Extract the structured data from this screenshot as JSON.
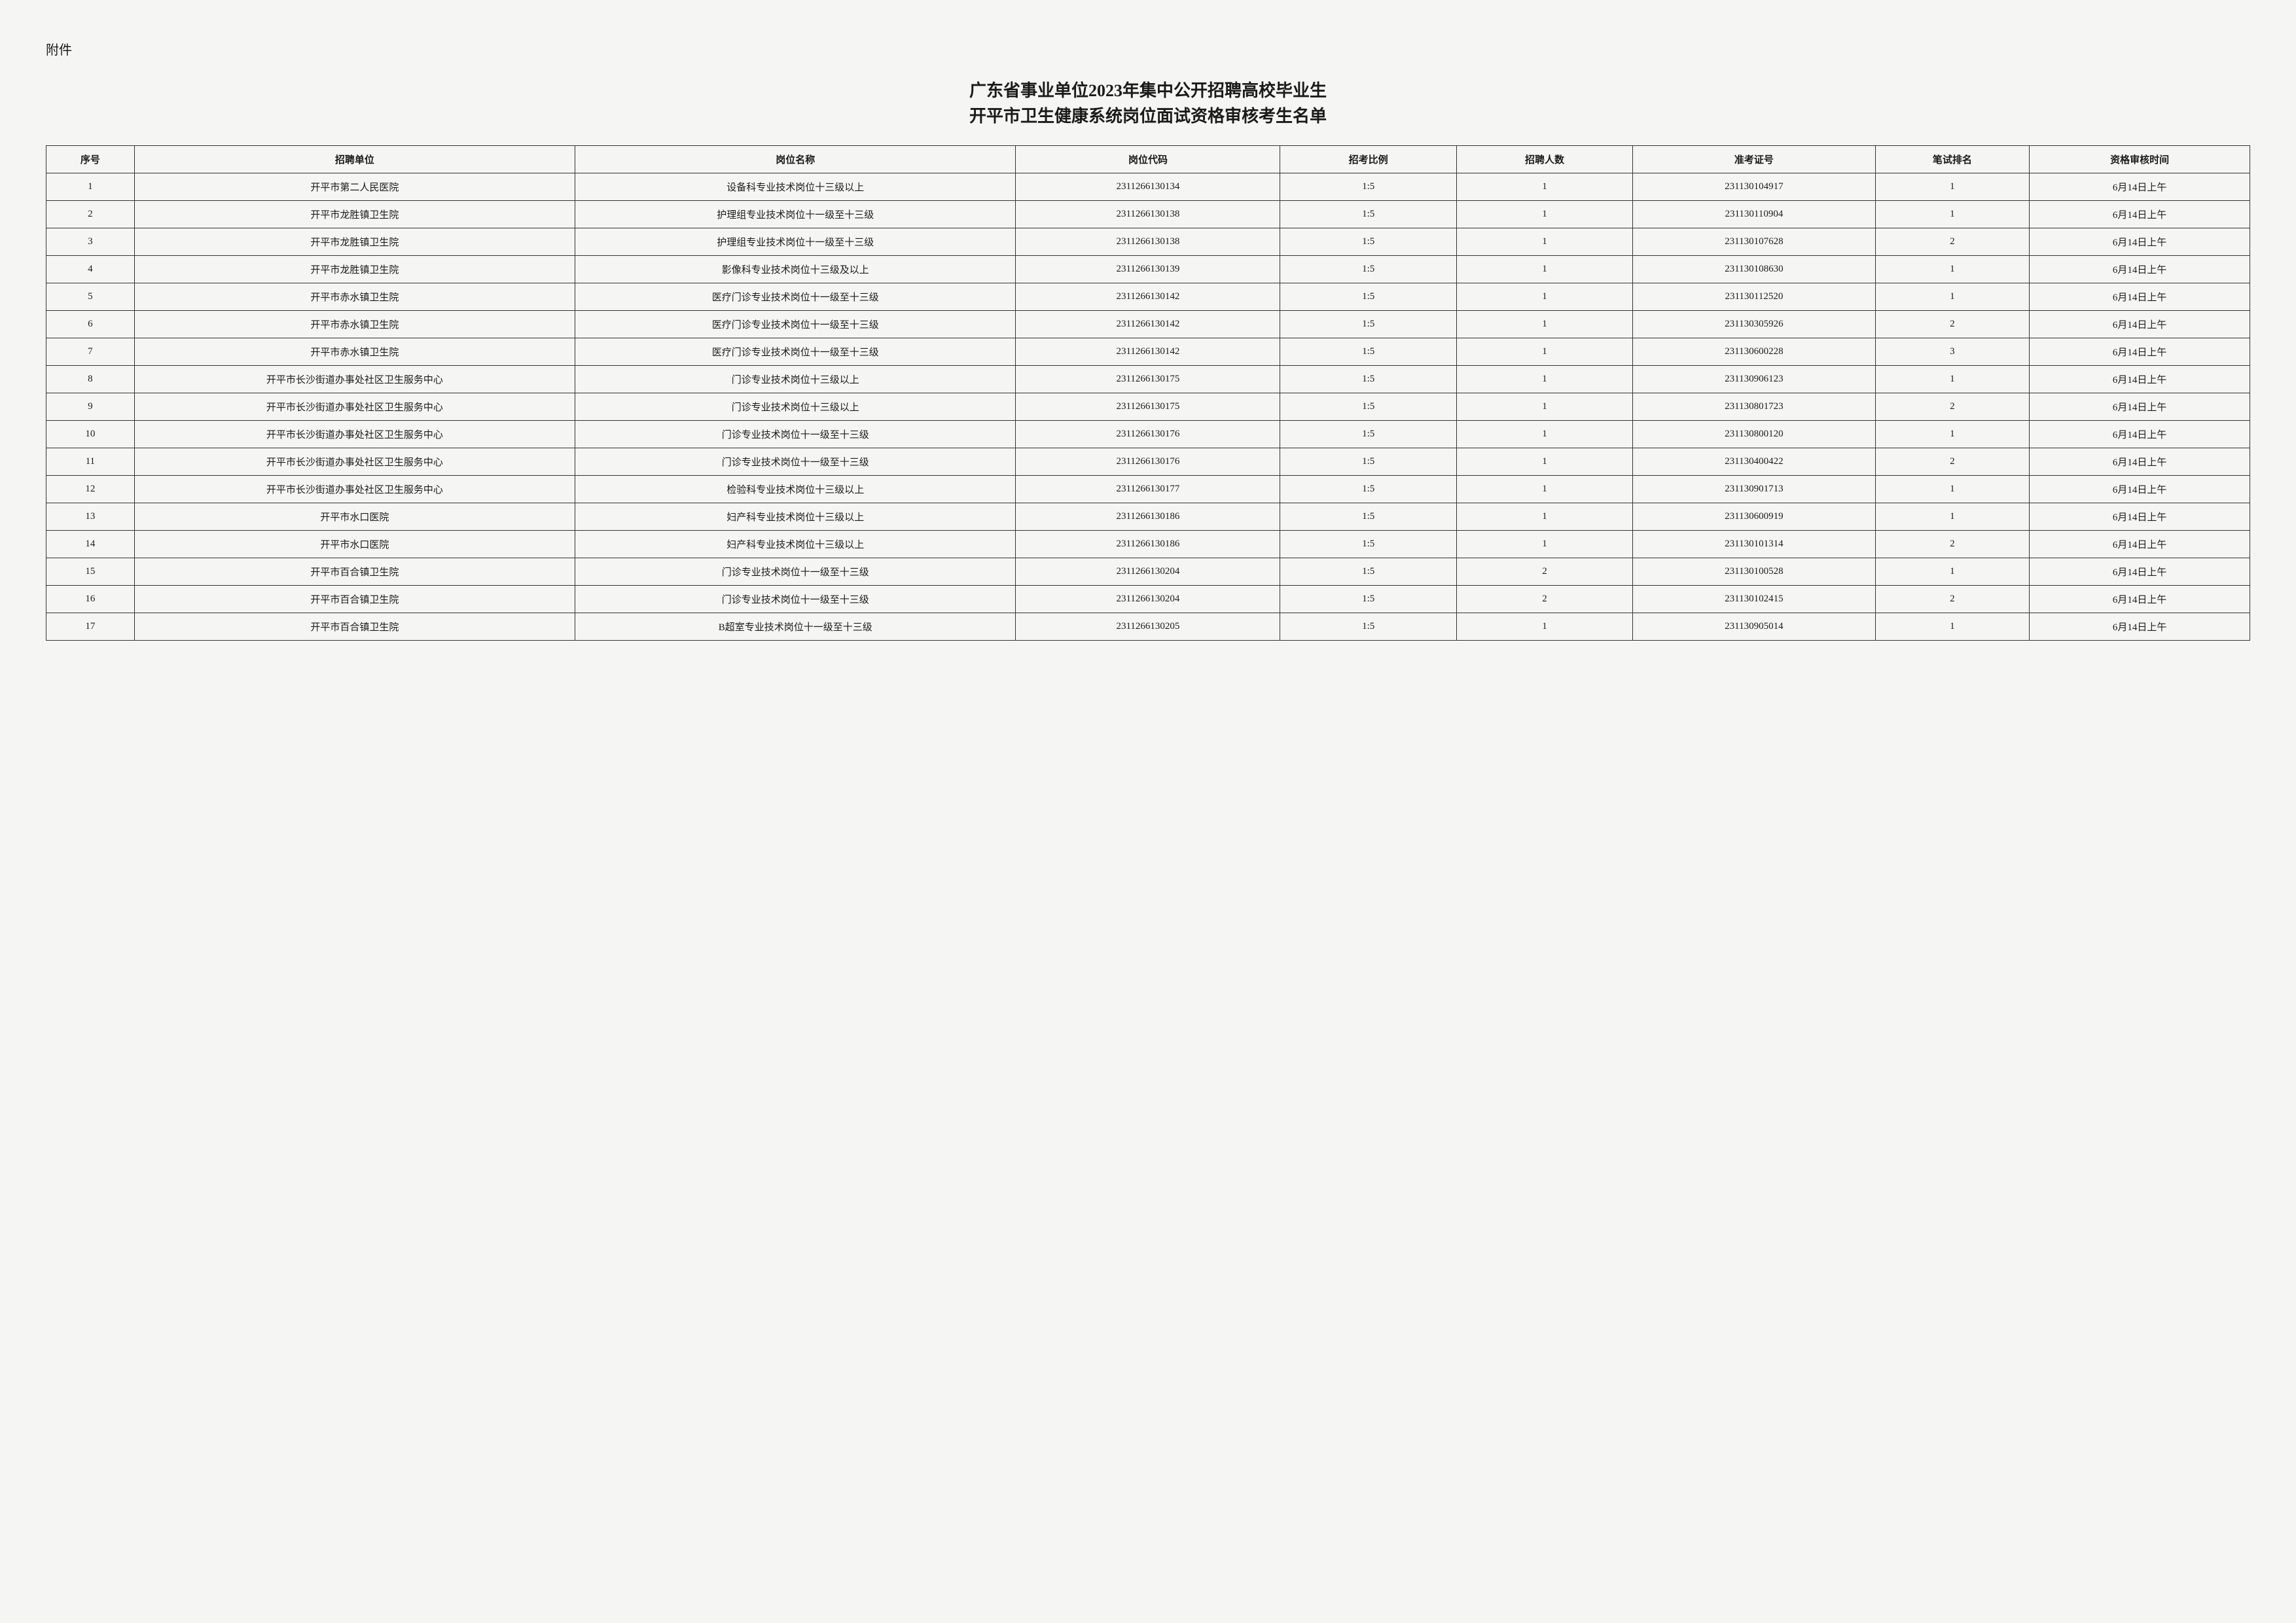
{
  "attachment_label": "附件",
  "title_line1": "广东省事业单位2023年集中公开招聘高校毕业生",
  "title_line2": "开平市卫生健康系统岗位面试资格审核考生名单",
  "headers": {
    "seq": "序号",
    "unit": "招聘单位",
    "post": "岗位名称",
    "code": "岗位代码",
    "ratio": "招考比例",
    "count": "招聘人数",
    "ticket": "准考证号",
    "rank": "笔试排名",
    "time": "资格审核时间"
  },
  "rows": [
    {
      "seq": "1",
      "unit": "开平市第二人民医院",
      "post": "设备科专业技术岗位十三级以上",
      "code": "2311266130134",
      "ratio": "1:5",
      "count": "1",
      "ticket": "231130104917",
      "rank": "1",
      "time": "6月14日上午"
    },
    {
      "seq": "2",
      "unit": "开平市龙胜镇卫生院",
      "post": "护理组专业技术岗位十一级至十三级",
      "code": "2311266130138",
      "ratio": "1:5",
      "count": "1",
      "ticket": "231130110904",
      "rank": "1",
      "time": "6月14日上午"
    },
    {
      "seq": "3",
      "unit": "开平市龙胜镇卫生院",
      "post": "护理组专业技术岗位十一级至十三级",
      "code": "2311266130138",
      "ratio": "1:5",
      "count": "1",
      "ticket": "231130107628",
      "rank": "2",
      "time": "6月14日上午"
    },
    {
      "seq": "4",
      "unit": "开平市龙胜镇卫生院",
      "post": "影像科专业技术岗位十三级及以上",
      "code": "2311266130139",
      "ratio": "1:5",
      "count": "1",
      "ticket": "231130108630",
      "rank": "1",
      "time": "6月14日上午"
    },
    {
      "seq": "5",
      "unit": "开平市赤水镇卫生院",
      "post": "医疗门诊专业技术岗位十一级至十三级",
      "code": "2311266130142",
      "ratio": "1:5",
      "count": "1",
      "ticket": "231130112520",
      "rank": "1",
      "time": "6月14日上午"
    },
    {
      "seq": "6",
      "unit": "开平市赤水镇卫生院",
      "post": "医疗门诊专业技术岗位十一级至十三级",
      "code": "2311266130142",
      "ratio": "1:5",
      "count": "1",
      "ticket": "231130305926",
      "rank": "2",
      "time": "6月14日上午"
    },
    {
      "seq": "7",
      "unit": "开平市赤水镇卫生院",
      "post": "医疗门诊专业技术岗位十一级至十三级",
      "code": "2311266130142",
      "ratio": "1:5",
      "count": "1",
      "ticket": "231130600228",
      "rank": "3",
      "time": "6月14日上午"
    },
    {
      "seq": "8",
      "unit": "开平市长沙街道办事处社区卫生服务中心",
      "post": "门诊专业技术岗位十三级以上",
      "code": "2311266130175",
      "ratio": "1:5",
      "count": "1",
      "ticket": "231130906123",
      "rank": "1",
      "time": "6月14日上午"
    },
    {
      "seq": "9",
      "unit": "开平市长沙街道办事处社区卫生服务中心",
      "post": "门诊专业技术岗位十三级以上",
      "code": "2311266130175",
      "ratio": "1:5",
      "count": "1",
      "ticket": "231130801723",
      "rank": "2",
      "time": "6月14日上午"
    },
    {
      "seq": "10",
      "unit": "开平市长沙街道办事处社区卫生服务中心",
      "post": "门诊专业技术岗位十一级至十三级",
      "code": "2311266130176",
      "ratio": "1:5",
      "count": "1",
      "ticket": "231130800120",
      "rank": "1",
      "time": "6月14日上午"
    },
    {
      "seq": "11",
      "unit": "开平市长沙街道办事处社区卫生服务中心",
      "post": "门诊专业技术岗位十一级至十三级",
      "code": "2311266130176",
      "ratio": "1:5",
      "count": "1",
      "ticket": "231130400422",
      "rank": "2",
      "time": "6月14日上午"
    },
    {
      "seq": "12",
      "unit": "开平市长沙街道办事处社区卫生服务中心",
      "post": "检验科专业技术岗位十三级以上",
      "code": "2311266130177",
      "ratio": "1:5",
      "count": "1",
      "ticket": "231130901713",
      "rank": "1",
      "time": "6月14日上午"
    },
    {
      "seq": "13",
      "unit": "开平市水口医院",
      "post": "妇产科专业技术岗位十三级以上",
      "code": "2311266130186",
      "ratio": "1:5",
      "count": "1",
      "ticket": "231130600919",
      "rank": "1",
      "time": "6月14日上午"
    },
    {
      "seq": "14",
      "unit": "开平市水口医院",
      "post": "妇产科专业技术岗位十三级以上",
      "code": "2311266130186",
      "ratio": "1:5",
      "count": "1",
      "ticket": "231130101314",
      "rank": "2",
      "time": "6月14日上午"
    },
    {
      "seq": "15",
      "unit": "开平市百合镇卫生院",
      "post": "门诊专业技术岗位十一级至十三级",
      "code": "2311266130204",
      "ratio": "1:5",
      "count": "2",
      "ticket": "231130100528",
      "rank": "1",
      "time": "6月14日上午"
    },
    {
      "seq": "16",
      "unit": "开平市百合镇卫生院",
      "post": "门诊专业技术岗位十一级至十三级",
      "code": "2311266130204",
      "ratio": "1:5",
      "count": "2",
      "ticket": "231130102415",
      "rank": "2",
      "time": "6月14日上午"
    },
    {
      "seq": "17",
      "unit": "开平市百合镇卫生院",
      "post": "B超室专业技术岗位十一级至十三级",
      "code": "2311266130205",
      "ratio": "1:5",
      "count": "1",
      "ticket": "231130905014",
      "rank": "1",
      "time": "6月14日上午"
    }
  ]
}
